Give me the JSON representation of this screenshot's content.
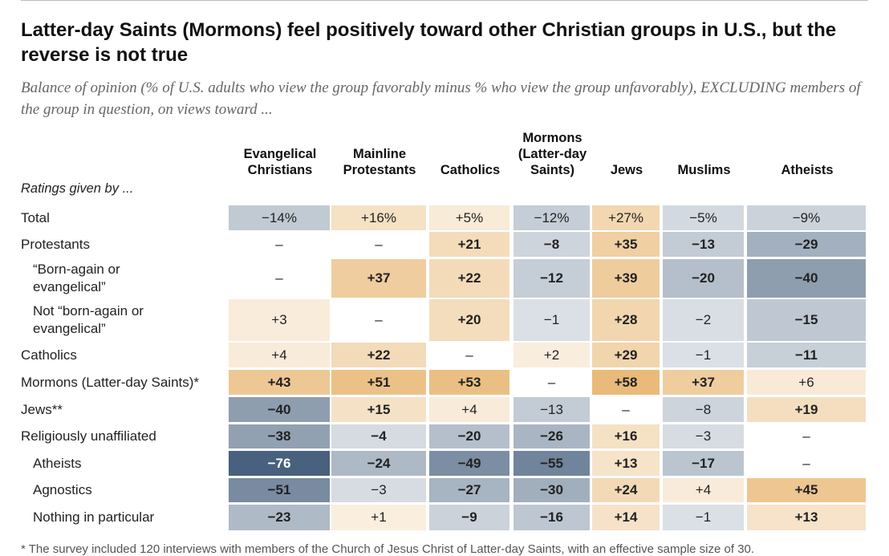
{
  "title": "Latter-day Saints (Mormons) feel positively toward other Christian groups in U.S., but the reverse is not true",
  "subtitle": "Balance of opinion (% of U.S. adults who view the group favorably minus % who view the group unfavorably), EXCLUDING members of the group in question, on views toward ...",
  "ratings_label": "Ratings given by ...",
  "footnote": "* The survey included 120 interviews with members of the Church of Jesus Christ of Latter-day Saints, with an effective sample size of 30.",
  "colors": {
    "positive": "#e6b26a",
    "negative": "#3f5a78",
    "zero_tint": "#ffffff"
  },
  "chart_data": {
    "type": "table",
    "columns": [
      "Evangelical\nChristians",
      "Mainline\nProtestants",
      "Catholics",
      "Mormons\n(Latter-day\nSaints)",
      "Jews",
      "Muslims",
      "Atheists"
    ],
    "rows": [
      {
        "label": "Total",
        "indent": false,
        "values": [
          "−14%",
          "+16%",
          "+5%",
          "−12%",
          "+27%",
          "−5%",
          "−9%"
        ],
        "numeric": [
          -14,
          16,
          5,
          -12,
          27,
          -5,
          -9
        ],
        "bold": [
          false,
          false,
          false,
          false,
          false,
          false,
          false
        ]
      },
      {
        "label": "Protestants",
        "indent": false,
        "values": [
          "–",
          "–",
          "+21",
          "−8",
          "+35",
          "−13",
          "−29"
        ],
        "numeric": [
          null,
          null,
          21,
          -8,
          35,
          -13,
          -29
        ],
        "bold": [
          false,
          false,
          true,
          true,
          true,
          true,
          true
        ]
      },
      {
        "label": "“Born-again or\nevangelical”",
        "indent": true,
        "values": [
          "–",
          "+37",
          "+22",
          "−12",
          "+39",
          "−20",
          "−40"
        ],
        "numeric": [
          null,
          37,
          22,
          -12,
          39,
          -20,
          -40
        ],
        "bold": [
          false,
          true,
          true,
          true,
          true,
          true,
          true
        ]
      },
      {
        "label": "Not “born-again or\nevangelical”",
        "indent": true,
        "values": [
          "+3",
          "–",
          "+20",
          "−1",
          "+28",
          "−2",
          "−15"
        ],
        "numeric": [
          3,
          null,
          20,
          -1,
          28,
          -2,
          -15
        ],
        "bold": [
          false,
          false,
          true,
          false,
          true,
          false,
          true
        ]
      },
      {
        "label": "Catholics",
        "indent": false,
        "values": [
          "+4",
          "+22",
          "–",
          "+2",
          "+29",
          "−1",
          "−11"
        ],
        "numeric": [
          4,
          22,
          null,
          2,
          29,
          -1,
          -11
        ],
        "bold": [
          false,
          true,
          false,
          false,
          true,
          false,
          true
        ]
      },
      {
        "label": "Mormons (Latter-day Saints)*",
        "indent": false,
        "values": [
          "+43",
          "+51",
          "+53",
          "–",
          "+58",
          "+37",
          "+6"
        ],
        "numeric": [
          43,
          51,
          53,
          null,
          58,
          37,
          6
        ],
        "bold": [
          true,
          true,
          true,
          false,
          true,
          true,
          false
        ]
      },
      {
        "label": "Jews**",
        "indent": false,
        "values": [
          "−40",
          "+15",
          "+4",
          "−13",
          "–",
          "−8",
          "+19"
        ],
        "numeric": [
          -40,
          15,
          4,
          -13,
          null,
          -8,
          19
        ],
        "bold": [
          true,
          true,
          false,
          false,
          false,
          false,
          true
        ]
      },
      {
        "label": "Religiously unaffiliated",
        "indent": false,
        "values": [
          "−38",
          "−4",
          "−20",
          "−26",
          "+16",
          "−3",
          "–"
        ],
        "numeric": [
          -38,
          -4,
          -20,
          -26,
          16,
          -3,
          null
        ],
        "bold": [
          true,
          true,
          true,
          true,
          true,
          false,
          false
        ]
      },
      {
        "label": "Atheists",
        "indent": true,
        "values": [
          "−76",
          "−24",
          "−49",
          "−55",
          "+13",
          "−17",
          "–"
        ],
        "numeric": [
          -76,
          -24,
          -49,
          -55,
          13,
          -17,
          null
        ],
        "bold": [
          true,
          true,
          true,
          true,
          true,
          true,
          false
        ]
      },
      {
        "label": "Agnostics",
        "indent": true,
        "values": [
          "−51",
          "−3",
          "−27",
          "−30",
          "+24",
          "+4",
          "+45"
        ],
        "numeric": [
          -51,
          -3,
          -27,
          -30,
          24,
          4,
          45
        ],
        "bold": [
          true,
          false,
          true,
          true,
          true,
          false,
          true
        ]
      },
      {
        "label": "Nothing in particular",
        "indent": true,
        "values": [
          "−23",
          "+1",
          "−9",
          "−16",
          "+14",
          "−1",
          "+13"
        ],
        "numeric": [
          -23,
          1,
          -9,
          -16,
          14,
          -1,
          13
        ],
        "bold": [
          true,
          false,
          true,
          true,
          true,
          false,
          true
        ]
      }
    ]
  }
}
